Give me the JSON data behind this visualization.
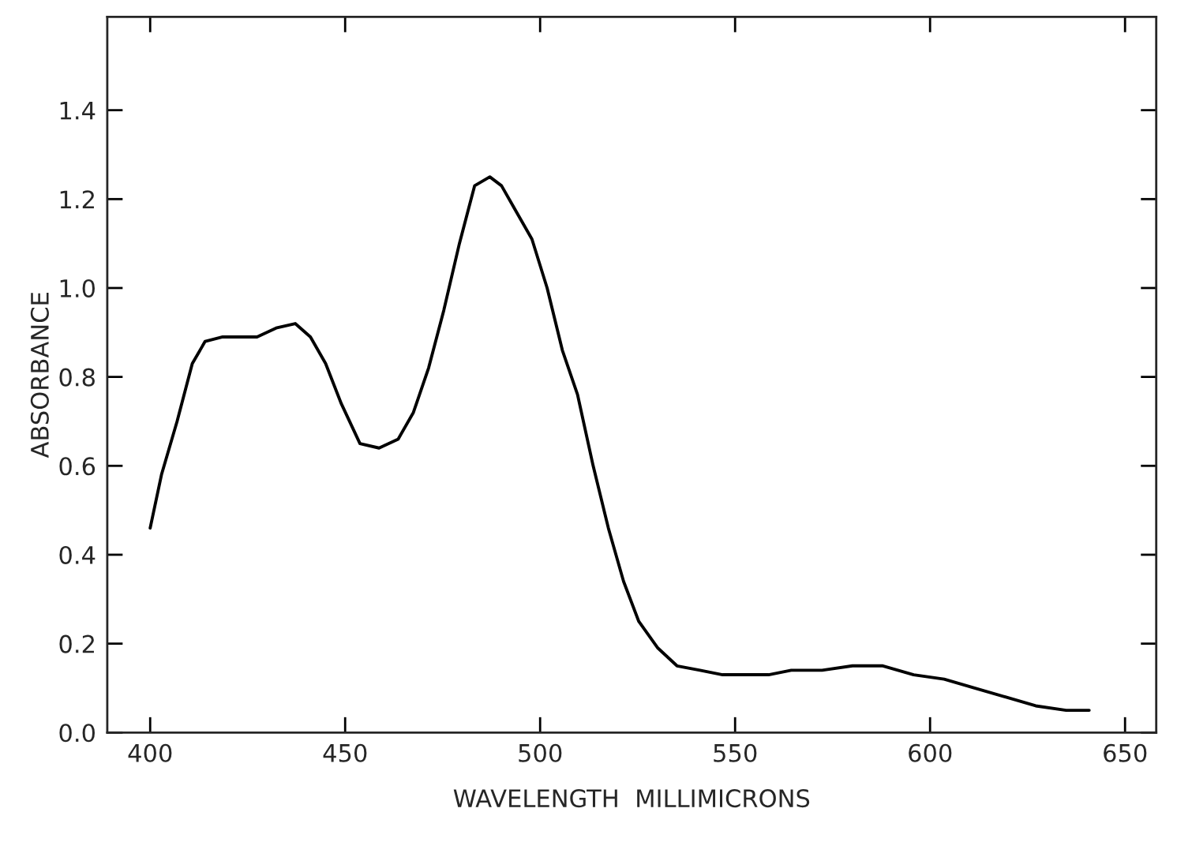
{
  "chart_data": {
    "type": "line",
    "xlabel": "WAVELENGTH  MILLIMICRONS",
    "ylabel": "ABSORBANCE",
    "xlim": [
      389,
      658
    ],
    "ylim": [
      0,
      1.61
    ],
    "xticks": [
      400,
      450,
      500,
      550,
      600,
      650
    ],
    "yticks": [
      {
        "value": 0,
        "label": "0.0"
      },
      0.2,
      0.4,
      0.6,
      0.8,
      {
        "value": 1.0,
        "label": "1.0"
      },
      1.2,
      1.4
    ],
    "grid": false,
    "legend": false,
    "marker": "none",
    "line_style": "solid",
    "series": [
      {
        "color": "#000000",
        "x": [
          400,
          402.9,
          406.9,
          410.8,
          414.1,
          418.6,
          422.5,
          427.4,
          432.3,
          437.2,
          441.1,
          445.0,
          449.0,
          453.8,
          458.7,
          463.6,
          467.5,
          471.4,
          475.3,
          479.3,
          483.2,
          487.1,
          490.1,
          494.0,
          497.9,
          501.8,
          505.7,
          509.6,
          513.6,
          517.5,
          521.4,
          525.3,
          530.2,
          535.1,
          541.0,
          546.8,
          552.7,
          558.6,
          564.4,
          572.3,
          580.1,
          587.9,
          595.8,
          603.6,
          611.4,
          619.3,
          627.1,
          634.9,
          640.8
        ],
        "values": [
          0.46,
          0.58,
          0.7,
          0.83,
          0.88,
          0.89,
          0.89,
          0.89,
          0.91,
          0.92,
          0.89,
          0.83,
          0.74,
          0.65,
          0.64,
          0.66,
          0.72,
          0.82,
          0.95,
          1.1,
          1.23,
          1.25,
          1.23,
          1.17,
          1.11,
          1.0,
          0.86,
          0.76,
          0.6,
          0.46,
          0.34,
          0.25,
          0.19,
          0.15,
          0.14,
          0.13,
          0.13,
          0.13,
          0.14,
          0.14,
          0.15,
          0.15,
          0.13,
          0.12,
          0.1,
          0.08,
          0.06,
          0.05,
          0.05
        ]
      }
    ]
  }
}
